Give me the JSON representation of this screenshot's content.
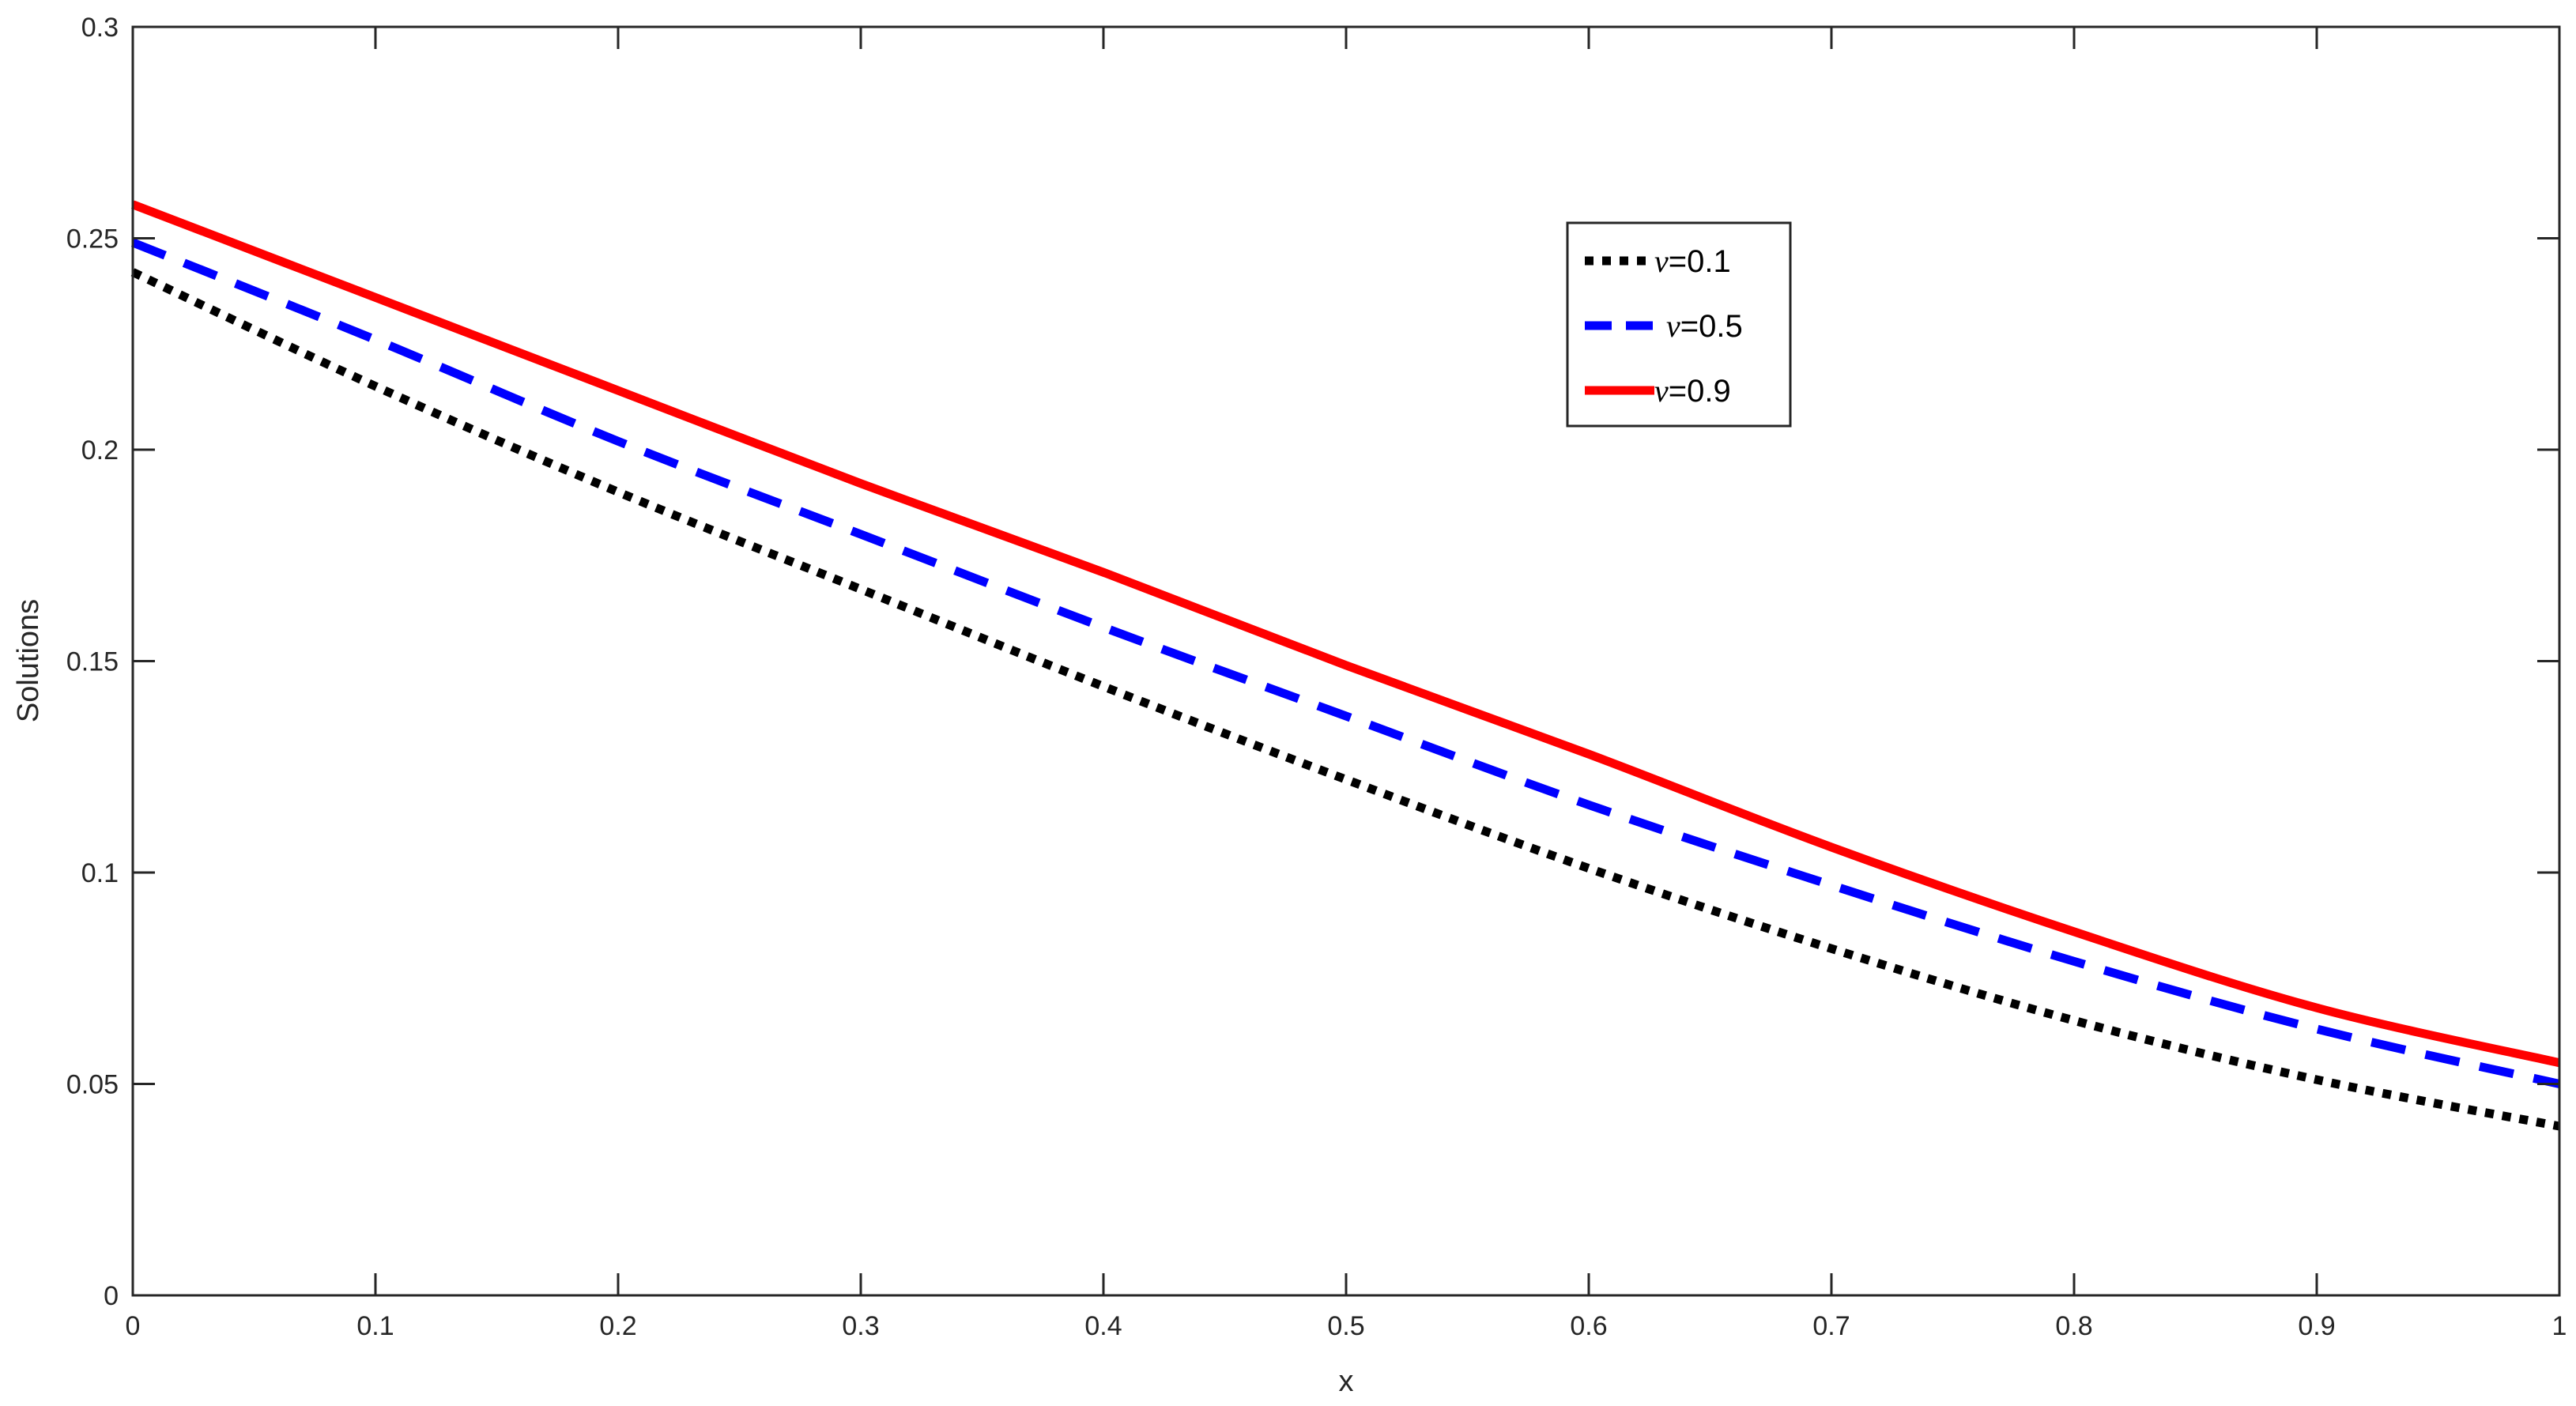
{
  "chart_data": {
    "type": "line",
    "xlabel": "x",
    "ylabel": "Solutions",
    "xlim": [
      0,
      1
    ],
    "ylim": [
      0,
      0.3
    ],
    "xticks": [
      "0",
      "0.1",
      "0.2",
      "0.3",
      "0.4",
      "0.5",
      "0.6",
      "0.7",
      "0.8",
      "0.9",
      "1"
    ],
    "yticks": [
      "0",
      "0.05",
      "0.1",
      "0.15",
      "0.2",
      "0.25",
      "0.3"
    ],
    "grid": false,
    "legend_position": "top-right",
    "x": [
      0,
      0.1,
      0.2,
      0.3,
      0.4,
      0.5,
      0.6,
      0.7,
      0.8,
      0.9,
      1.0
    ],
    "series": [
      {
        "name_symbol": "ν",
        "name_value": "=0.1",
        "style": "dotted",
        "color": "#000000",
        "values": [
          0.242,
          0.215,
          0.19,
          0.167,
          0.144,
          0.122,
          0.101,
          0.082,
          0.065,
          0.051,
          0.04
        ]
      },
      {
        "name_symbol": "ν",
        "name_value": "=0.5",
        "style": "dashed",
        "color": "#0000ff",
        "values": [
          0.249,
          0.226,
          0.202,
          0.18,
          0.158,
          0.137,
          0.116,
          0.097,
          0.079,
          0.063,
          0.05
        ]
      },
      {
        "name_symbol": "ν",
        "name_value": "=0.9",
        "style": "solid",
        "color": "#ff0000",
        "values": [
          0.258,
          0.236,
          0.214,
          0.192,
          0.171,
          0.149,
          0.128,
          0.106,
          0.086,
          0.068,
          0.055
        ]
      }
    ]
  }
}
